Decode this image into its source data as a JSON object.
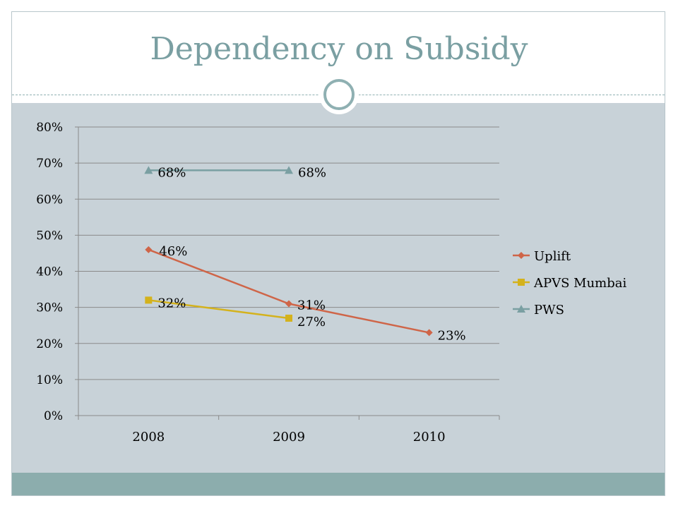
{
  "slide": {
    "title": "Dependency on Subsidy"
  },
  "colors": {
    "title": "#7a9fa2",
    "panel": "#c8d2d8",
    "footer": "#8cadad"
  },
  "chart_data": {
    "type": "line",
    "title": "",
    "xlabel": "",
    "ylabel": "",
    "categories": [
      "2008",
      "2009",
      "2010"
    ],
    "ylim": [
      0,
      0.8
    ],
    "yticks": [
      {
        "value": 0,
        "label": "0%"
      },
      {
        "value": 0.1,
        "label": "10%"
      },
      {
        "value": 0.2,
        "label": "20%"
      },
      {
        "value": 0.3,
        "label": "30%"
      },
      {
        "value": 0.4,
        "label": "40%"
      },
      {
        "value": 0.5,
        "label": "50%"
      },
      {
        "value": 0.6,
        "label": "60%"
      },
      {
        "value": 0.7,
        "label": "70%"
      },
      {
        "value": 0.8,
        "label": "80%"
      }
    ],
    "grid": true,
    "legend_position": "right",
    "series": [
      {
        "name": "Uplift",
        "color": "#cf6548",
        "marker": "diamond",
        "values": [
          0.46,
          0.31,
          0.23
        ],
        "labels": [
          "46%",
          "31%",
          "23%"
        ]
      },
      {
        "name": "APVS Mumbai",
        "color": "#d4b21c",
        "marker": "square",
        "values": [
          0.32,
          0.27,
          null
        ],
        "labels": [
          "32%",
          "27%",
          null
        ]
      },
      {
        "name": "PWS",
        "color": "#7a9fa2",
        "marker": "triangle",
        "values": [
          0.68,
          0.68,
          null
        ],
        "labels": [
          "68%",
          "68%",
          null
        ]
      }
    ]
  }
}
